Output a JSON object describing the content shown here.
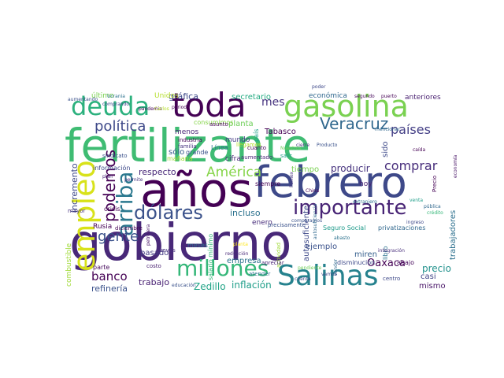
{
  "words": [
    {
      "text": "fertilizante",
      "color": "#3fbc73"
    },
    {
      "text": "gobierno",
      "color": "#482878"
    },
    {
      "text": "años",
      "color": "#440154"
    },
    {
      "text": "febrero",
      "color": "#3e4989"
    },
    {
      "text": "gasolina",
      "color": "#7ad151"
    },
    {
      "text": "toda",
      "color": "#440154"
    },
    {
      "text": "deuda",
      "color": "#2cb17e"
    },
    {
      "text": "empleo",
      "color": "#d8e219"
    },
    {
      "text": "Salinas",
      "color": "#26828e"
    },
    {
      "text": "millones",
      "color": "#35b779"
    },
    {
      "text": "dólares",
      "color": "#3b528b"
    },
    {
      "text": "importante",
      "color": "#482475"
    },
    {
      "text": "arriba",
      "color": "#2a788e"
    },
    {
      "text": "América",
      "color": "#86d549"
    },
    {
      "text": "Veracruz",
      "color": "#31688e"
    },
    {
      "text": "países",
      "color": "#433e85"
    },
    {
      "text": "política",
      "color": "#3e4989"
    },
    {
      "text": "podemos",
      "color": "#440154"
    },
    {
      "text": "gente",
      "color": "#3b528b"
    },
    {
      "text": "banco",
      "color": "#440154"
    },
    {
      "text": "comprar",
      "color": "#472d7b"
    },
    {
      "text": "producir",
      "color": "#46327e"
    },
    {
      "text": "mes",
      "color": "#46337f"
    },
    {
      "text": "Oaxaca",
      "color": "#440154"
    },
    {
      "text": "inflación",
      "color": "#1f9e89"
    },
    {
      "text": "Zedillo",
      "color": "#20a386"
    },
    {
      "text": "trabajo",
      "color": "#482173"
    },
    {
      "text": "refinería",
      "color": "#3b528b"
    },
    {
      "text": "respecto",
      "color": "#482878"
    },
    {
      "text": "pasado",
      "color": "#443a83"
    },
    {
      "text": "incluso",
      "color": "#2c728e"
    },
    {
      "text": "enero",
      "color": "#472d7b"
    },
    {
      "text": "precio",
      "color": "#21918c"
    },
    {
      "text": "mismo",
      "color": "#481467"
    },
    {
      "text": "casi",
      "color": "#414487"
    },
    {
      "text": "empresa",
      "color": "#2c728e"
    },
    {
      "text": "ejemplo",
      "color": "#3b528b"
    },
    {
      "text": "incremento",
      "color": "#3e4989"
    },
    {
      "text": "secretario",
      "color": "#25ab82"
    },
    {
      "text": "gráfica",
      "color": "#3e4989"
    },
    {
      "text": "planta",
      "color": "#6ece58"
    },
    {
      "text": "Tabasco",
      "color": "#440154"
    },
    {
      "text": "tiempo",
      "color": "#7ad151"
    },
    {
      "text": "sólo",
      "color": "#365c8d"
    },
    {
      "text": "mundo",
      "color": "#443b84"
    },
    {
      "text": "cifra",
      "color": "#482576"
    },
    {
      "text": "hoy",
      "color": "#482071"
    },
    {
      "text": "miren",
      "color": "#355f8d"
    },
    {
      "text": "autosuficiente",
      "color": "#3e4989"
    },
    {
      "text": "sido",
      "color": "#3e4989"
    },
    {
      "text": "trabajadores",
      "color": "#2d708e"
    },
    {
      "text": "combustible",
      "color": "#a0da39"
    },
    {
      "text": "económica",
      "color": "#31688e"
    },
    {
      "text": "anteriores",
      "color": "#481f70"
    },
    {
      "text": "último",
      "color": "#7ad151"
    },
    {
      "text": "Unidos",
      "color": "#b5de2b"
    },
    {
      "text": "menos",
      "color": "#482475"
    },
    {
      "text": "Rusia",
      "color": "#440154"
    },
    {
      "text": "país",
      "color": "#1fa187"
    },
    {
      "text": "disminución",
      "color": "#3e4989"
    },
    {
      "text": "abajo",
      "color": "#46085c"
    },
    {
      "text": "libro",
      "color": "#2c728e"
    },
    {
      "text": "Seguro Social",
      "color": "#1f9a8a"
    },
    {
      "text": "privatizaciones",
      "color": "#31688e"
    },
    {
      "text": "información",
      "color": "#3e4989"
    },
    {
      "text": "industria",
      "color": "#440154"
    },
    {
      "text": "familia",
      "color": "#46337f"
    },
    {
      "text": "mañana",
      "color": "#a0da39"
    },
    {
      "text": "grande",
      "color": "#3b528b"
    },
    {
      "text": "Línea",
      "color": "#2c728e"
    },
    {
      "text": "aumentado",
      "color": "#482576"
    },
    {
      "text": "cuanto",
      "color": "#440154"
    },
    {
      "text": "salir",
      "color": "#1f9e89"
    },
    {
      "text": "siempre",
      "color": "#440154"
    },
    {
      "text": "crisis",
      "color": "#440154"
    },
    {
      "text": "mayor",
      "color": "#46327e"
    },
    {
      "text": "actividad",
      "color": "#a0da39"
    },
    {
      "text": "costo",
      "color": "#481f70"
    },
    {
      "text": "jueves",
      "color": "#46327e"
    },
    {
      "text": "meses",
      "color": "#2c728e"
    },
    {
      "text": "educación",
      "color": "#3b528b"
    },
    {
      "text": "salario mínimo",
      "color": "#35b779"
    },
    {
      "text": "petrolera",
      "color": "#481467"
    },
    {
      "text": "parte",
      "color": "#46085c"
    },
    {
      "text": "diciembre",
      "color": "#440154"
    },
    {
      "text": "apreciar",
      "color": "#482475"
    },
    {
      "text": "pendiente",
      "color": "#6ece58"
    },
    {
      "text": "centro",
      "color": "#3e4989"
    },
    {
      "text": "vender",
      "color": "#31688e"
    },
    {
      "text": "precisamente",
      "color": "#3b528b"
    },
    {
      "text": "China",
      "color": "#440154"
    },
    {
      "text": "Pemex",
      "color": "#46337f"
    },
    {
      "text": "atender",
      "color": "#2c728e"
    },
    {
      "text": "planta",
      "color": "#fde725"
    },
    {
      "text": "reducción",
      "color": "#482878"
    },
    {
      "text": "ingreso",
      "color": "#3e4989"
    },
    {
      "text": "crédito",
      "color": "#35b779"
    },
    {
      "text": "pública",
      "color": "#31688e"
    },
    {
      "text": "Producto",
      "color": "#3b528b"
    },
    {
      "text": "Nuestros",
      "color": "#6ece58"
    },
    {
      "text": "llegamos",
      "color": "#b5de2b"
    },
    {
      "text": "consumimos",
      "color": "#86d549"
    },
    {
      "text": "asunto",
      "color": "#440154"
    },
    {
      "text": "mencionar",
      "color": "#31688e"
    },
    {
      "text": "segundo",
      "color": "#46085c"
    },
    {
      "text": "puerto",
      "color": "#440154"
    },
    {
      "text": "poder",
      "color": "#3e4989"
    },
    {
      "text": "Ucrania",
      "color": "#2c728e"
    },
    {
      "text": "periodo",
      "color": "#440154"
    },
    {
      "text": "aumentando",
      "color": "#3b528b"
    },
    {
      "text": "comprando",
      "color": "#3e4989"
    },
    {
      "text": "pandemia",
      "color": "#440154"
    },
    {
      "text": "sindicato",
      "color": "#3b528b"
    },
    {
      "text": "extranjero",
      "color": "#2c728e"
    },
    {
      "text": "cierre",
      "color": "#46327e"
    },
    {
      "text": "economía",
      "color": "#481467"
    },
    {
      "text": "caída",
      "color": "#440154"
    },
    {
      "text": "venta",
      "color": "#1f9e89"
    },
    {
      "text": "Carlos",
      "color": "#b5de2b"
    },
    {
      "text": "Precio",
      "color": "#440154"
    },
    {
      "text": "abasto",
      "color": "#2c728e"
    },
    {
      "text": "cuenta",
      "color": "#3e4989"
    },
    {
      "text": "comparamos",
      "color": "#3b528b"
    },
    {
      "text": "autosuficiencia",
      "color": "#31688e"
    },
    {
      "text": "integración",
      "color": "#472d7b"
    },
    {
      "text": "plan",
      "color": "#482475"
    },
    {
      "text": "permite",
      "color": "#46337f"
    },
    {
      "text": "vamos",
      "color": "#3e4989"
    }
  ]
}
